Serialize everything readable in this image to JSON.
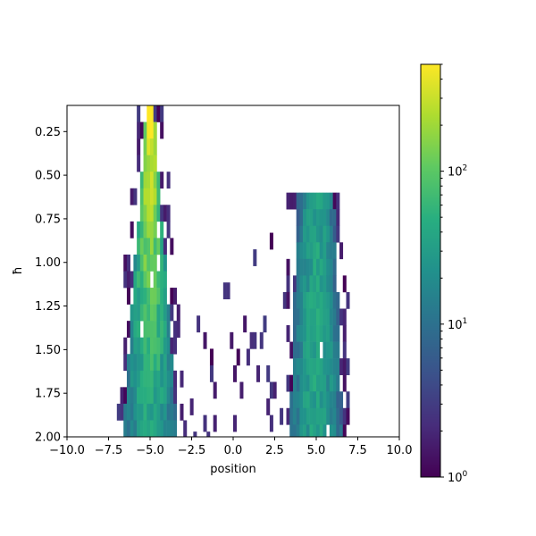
{
  "chart_data": {
    "type": "heatmap",
    "title": "",
    "xlabel": "position",
    "ylabel": "ħ",
    "xlim": [
      -10,
      10
    ],
    "ylim": [
      2.0,
      0.1
    ],
    "y_inverted": true,
    "x_ticks": [
      "−10.0",
      "−7.5",
      "−5.0",
      "−2.5",
      "0.0",
      "2.5",
      "5.0",
      "7.5",
      "10.0"
    ],
    "x_tick_values": [
      -10,
      -7.5,
      -5,
      -2.5,
      0,
      2.5,
      5,
      7.5,
      10
    ],
    "y_ticks": [
      "0.25",
      "0.50",
      "0.75",
      "1.00",
      "1.25",
      "1.50",
      "1.75",
      "2.00"
    ],
    "y_tick_values": [
      0.25,
      0.5,
      0.75,
      1.0,
      1.25,
      1.5,
      1.75,
      2.0
    ],
    "colormap": "viridis",
    "colorbar": {
      "scale": "log",
      "range": [
        1,
        500
      ],
      "tick_values": [
        1,
        10,
        100
      ],
      "tick_labels": [
        "10",
        "10",
        "10"
      ],
      "tick_exponents": [
        "0",
        "1",
        "2"
      ]
    },
    "hbar_rows": [
      0.1,
      2.0
    ],
    "row_step": 0.095,
    "x_bin_width": 0.2,
    "left_cluster": {
      "center": -5.0,
      "top_hbar": 0.1,
      "half_width_at_top": 0.25,
      "half_width_at_bottom": 1.7,
      "peak_count": 500
    },
    "right_cluster": {
      "center": 5.0,
      "top_hbar": 0.6,
      "half_width_at_top": 1.1,
      "half_width_at_bottom": 1.6,
      "peak_count": 40
    },
    "scattered_region_x": [
      -2.5,
      2.5
    ],
    "grid": false,
    "legend": "none"
  }
}
